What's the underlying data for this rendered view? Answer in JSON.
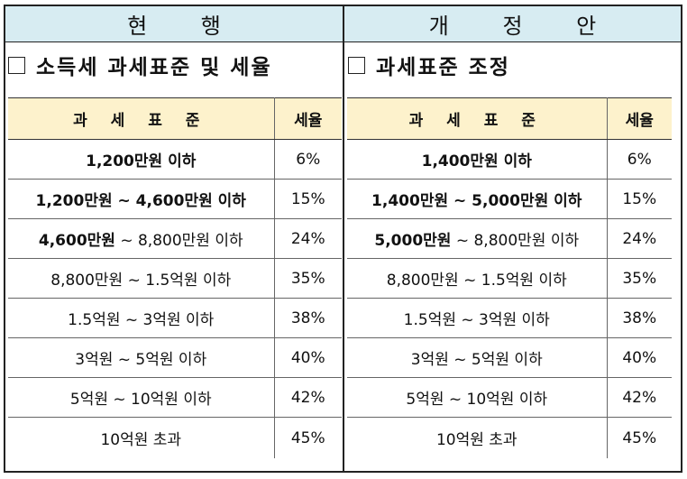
{
  "left": {
    "header": "현 행",
    "section_title": "소득세 과세표준 및 세율",
    "columns": [
      "과 세 표 준",
      "세율"
    ],
    "rows": [
      {
        "bold_part": "1,200만원 이하",
        "rest": "",
        "rate": "6%"
      },
      {
        "bold_part": "1,200만원 ~ 4,600만원 이하",
        "rest": "",
        "rate": "15%"
      },
      {
        "bold_part": "4,600만원",
        "rest": " ~ 8,800만원 이하",
        "rate": "24%"
      },
      {
        "bold_part": "",
        "rest": "8,800만원 ~ 1.5억원 이하",
        "rate": "35%"
      },
      {
        "bold_part": "",
        "rest": "1.5억원 ~ 3억원 이하",
        "rate": "38%"
      },
      {
        "bold_part": "",
        "rest": "3억원 ~ 5억원 이하",
        "rate": "40%"
      },
      {
        "bold_part": "",
        "rest": "5억원 ~ 10억원 이하",
        "rate": "42%"
      },
      {
        "bold_part": "",
        "rest": "10억원 초과",
        "rate": "45%"
      }
    ]
  },
  "right": {
    "header": "개 정 안",
    "section_title": "과세표준 조정",
    "columns": [
      "과 세 표 준",
      "세율"
    ],
    "rows": [
      {
        "bold_part": "1,400만원 이하",
        "rest": "",
        "rate": "6%"
      },
      {
        "bold_part": "1,400만원 ~ 5,000만원 이하",
        "rest": "",
        "rate": "15%"
      },
      {
        "bold_part": "5,000만원",
        "rest": " ~ 8,800만원 이하",
        "rate": "24%"
      },
      {
        "bold_part": "",
        "rest": "8,800만원 ~ 1.5억원 이하",
        "rate": "35%"
      },
      {
        "bold_part": "",
        "rest": "1.5억원 ~ 3억원 이하",
        "rate": "38%"
      },
      {
        "bold_part": "",
        "rest": "3억원 ~ 5억원 이하",
        "rate": "40%"
      },
      {
        "bold_part": "",
        "rest": "5억원 ~ 10억원 이하",
        "rate": "42%"
      },
      {
        "bold_part": "",
        "rest": "10억원 초과",
        "rate": "45%"
      }
    ]
  },
  "colors": {
    "header_bg": "#d7ecf2",
    "column_header_bg": "#fdf2cc"
  }
}
